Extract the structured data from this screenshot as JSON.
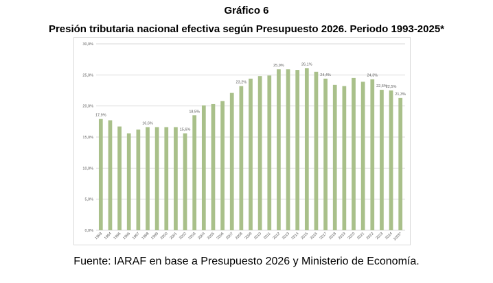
{
  "header": {
    "title": "Gráfico 6",
    "subtitle": "Presión tributaria nacional efectiva según Presupuesto 2026. Periodo 1993-2025*"
  },
  "footer": {
    "source": "Fuente: IARAF en base a Presupuesto 2026 y Ministerio de Economía."
  },
  "colors": {
    "bar": "#a9c08a",
    "grid": "#d9d9d9",
    "text": "#595959"
  },
  "chart_data": {
    "type": "bar",
    "categories": [
      "1993",
      "1994",
      "1995",
      "1996",
      "1997",
      "1998",
      "1999",
      "2000",
      "2001",
      "2002",
      "2003",
      "2004",
      "2005",
      "2006",
      "2007",
      "2008",
      "2009",
      "2010",
      "2011",
      "2012",
      "2013",
      "2014",
      "2015",
      "2016",
      "2017",
      "2018",
      "2019",
      "2020",
      "2021",
      "2022",
      "2023",
      "2024",
      "2025*"
    ],
    "values": [
      17.9,
      17.7,
      16.7,
      15.6,
      16.2,
      16.6,
      16.6,
      16.6,
      16.6,
      15.6,
      18.5,
      20.1,
      20.3,
      20.8,
      22.1,
      23.2,
      24.4,
      24.8,
      24.9,
      25.9,
      25.9,
      25.8,
      26.1,
      25.5,
      24.4,
      23.4,
      23.2,
      24.5,
      23.9,
      24.3,
      22.6,
      22.5,
      21.3
    ],
    "data_labels": {
      "0": "17,9%",
      "5": "16,6%",
      "9": "15,6%",
      "10": "18,5%",
      "15": "23,2%",
      "19": "25,9%",
      "22": "26,1%",
      "24": "24,4%",
      "29": "24,3%",
      "30": "22,6%",
      "31": "22,5%",
      "32": "21,3%"
    },
    "yticks": [
      "0,0%",
      "5,0%",
      "10,0%",
      "15,0%",
      "20,0%",
      "25,0%",
      "30,0%"
    ],
    "ytick_values": [
      0,
      5,
      10,
      15,
      20,
      25,
      30
    ],
    "ylim": [
      0,
      30
    ],
    "grid": true,
    "legend": false
  }
}
